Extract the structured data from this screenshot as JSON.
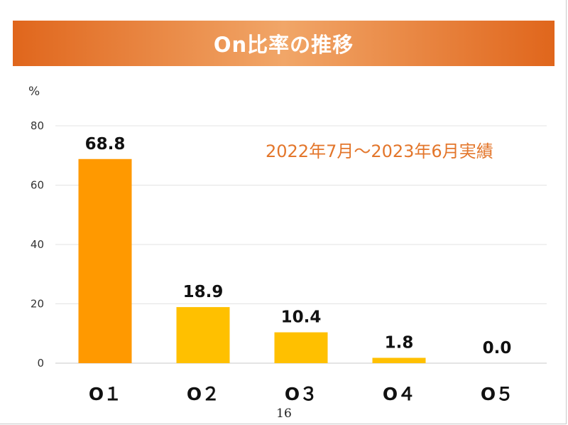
{
  "slide": {
    "title": "On比率の推移",
    "period_note": "2022年7月～2023年6月実績",
    "page_number": "16"
  },
  "colors": {
    "title_bar": "#e56f22",
    "highlight_bar": "#ff9900",
    "bar": "#ffc000",
    "note_text": "#e3762b"
  },
  "chart_data": {
    "type": "bar",
    "ylabel": "%",
    "categories": [
      "O１",
      "O２",
      "O３",
      "O４",
      "O５"
    ],
    "values": [
      68.8,
      18.9,
      10.4,
      1.8,
      0.0
    ],
    "value_labels": [
      "68.8",
      "18.9",
      "10.4",
      "1.8",
      "0.0"
    ],
    "ylim": [
      0,
      80
    ],
    "yticks": [
      0,
      20,
      40,
      60,
      80
    ],
    "grid": true,
    "legend": "none"
  }
}
